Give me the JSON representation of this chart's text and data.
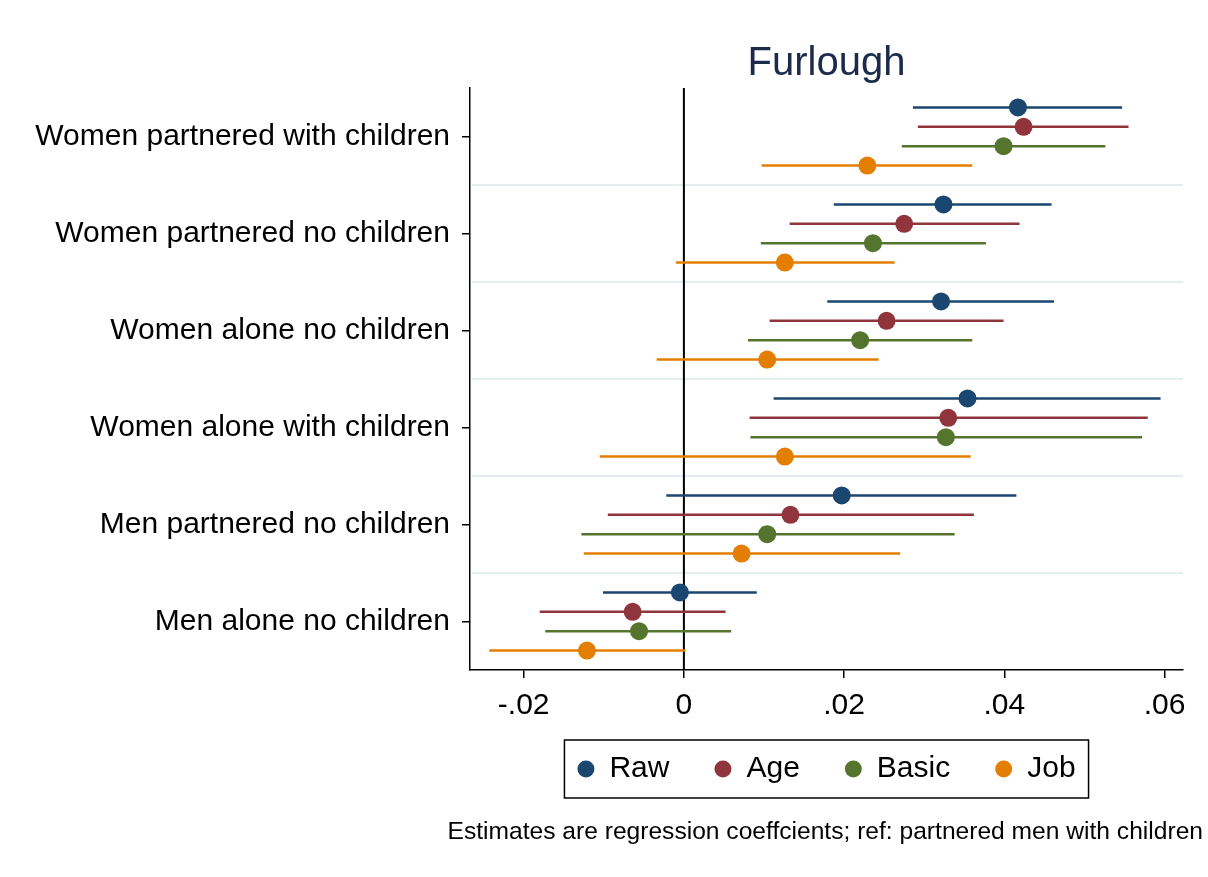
{
  "chart_data": {
    "type": "scatter",
    "orientation": "horizontal",
    "title": "Furlough",
    "categories": [
      "Women partnered with children",
      "Women partnered no children",
      "Women alone no children",
      "Women alone with children",
      "Men partnered no children",
      "Men alone no children"
    ],
    "series": [
      {
        "name": "Raw",
        "color": "#1a476f",
        "values": [
          0.0417,
          0.0324,
          0.0321,
          0.0354,
          0.0197,
          -0.0005
        ],
        "errors": [
          [
            0.0286,
            0.0547
          ],
          [
            0.0187,
            0.0459
          ],
          [
            0.0179,
            0.0462
          ],
          [
            0.0112,
            0.0595
          ],
          [
            -0.0022,
            0.0415
          ],
          [
            -0.0101,
            0.0091
          ]
        ]
      },
      {
        "name": "Age",
        "color": "#90353b",
        "values": [
          0.0424,
          0.0275,
          0.0253,
          0.033,
          0.0133,
          -0.0064
        ],
        "errors": [
          [
            0.0292,
            0.0555
          ],
          [
            0.0132,
            0.0419
          ],
          [
            0.0107,
            0.0399
          ],
          [
            0.0082,
            0.0579
          ],
          [
            -0.0095,
            0.0362
          ],
          [
            -0.018,
            0.0052
          ]
        ]
      },
      {
        "name": "Basic",
        "color": "#55752f",
        "values": [
          0.0399,
          0.0236,
          0.022,
          0.0327,
          0.0104,
          -0.0056
        ],
        "errors": [
          [
            0.0272,
            0.0526
          ],
          [
            0.0096,
            0.0377
          ],
          [
            0.008,
            0.036
          ],
          [
            0.0083,
            0.0572
          ],
          [
            -0.0128,
            0.0338
          ],
          [
            -0.0173,
            0.0059
          ]
        ]
      },
      {
        "name": "Job",
        "color": "#e37e00",
        "values": [
          0.0229,
          0.0126,
          0.0104,
          0.0126,
          0.0072,
          -0.0121
        ],
        "errors": [
          [
            0.0097,
            0.036
          ],
          [
            -0.001,
            0.0263
          ],
          [
            -0.0034,
            0.0243
          ],
          [
            -0.0105,
            0.0358
          ],
          [
            -0.0125,
            0.027
          ],
          [
            -0.0243,
            0.0002
          ]
        ]
      }
    ],
    "xlim": [
      -0.0267,
      0.0623
    ],
    "xticks": [
      {
        "value": -0.02,
        "label": "-.02"
      },
      0,
      {
        "value": 0.02,
        "label": ".02"
      },
      {
        "value": 0.04,
        "label": ".04"
      },
      {
        "value": 0.06,
        "label": ".06"
      }
    ],
    "ref_lines": [
      {
        "axis": "x",
        "value": 0,
        "color": "#000000"
      }
    ],
    "grid": "y",
    "legend": "bottom",
    "marker": "circle",
    "annotations": [
      "Estimates are regression coeffcients; ref: partnered men with children"
    ]
  }
}
